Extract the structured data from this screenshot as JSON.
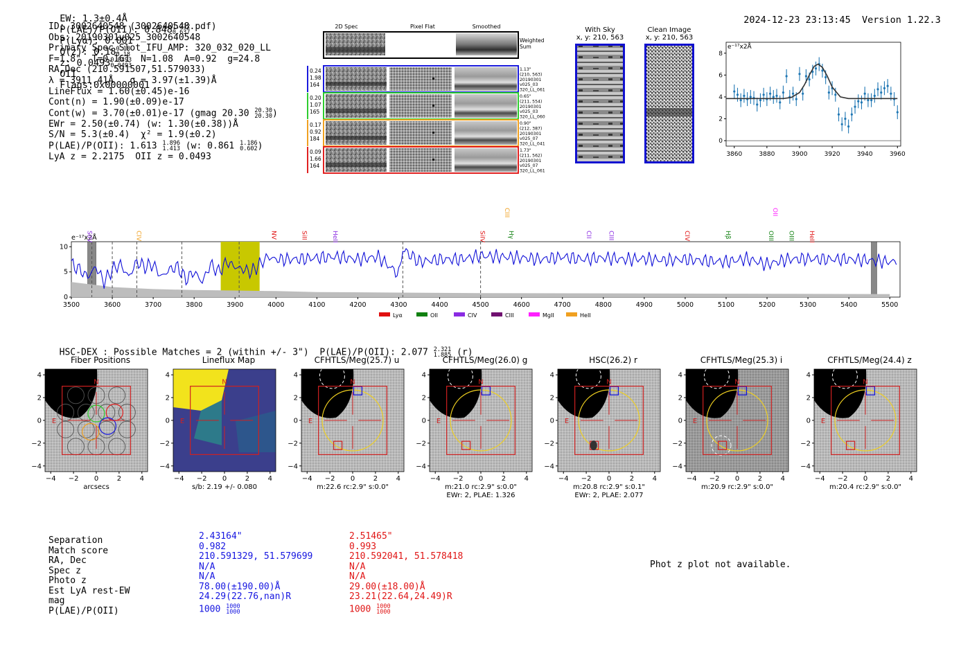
{
  "header": {
    "ew": "EW: 1.3±0.4Å",
    "plae_label": "P(LAE)/P(OII): 0.848",
    "plae_hi": "1.232",
    "plae_lo": "0.637",
    "plya": "P(Lyα): 0.001",
    "qz_label": "Q(z): 0.18",
    "qz_hi": "0.18",
    "qz_lo": "0.18",
    "z_label": "z: 0.0493",
    "z_hi": "0.0493",
    "z_lo": "0.0493",
    "z_line": "OII",
    "flags": "Flags:0x00000001",
    "timestamp": "2024-12-23 23:13:45",
    "version": "Version 1.22.3"
  },
  "info": {
    "id": "ID: 3002640548 (3002640548.pdf)",
    "obs": "Obs: 20190301v025_3002640548",
    "primary": "Primary Spec_Slot_IFU_AMP: 320_032_020_LL",
    "fiber": "F=1.8\"  T=0.161  N=1.08  A=0.92  g=24.8",
    "radec": "RA,Dec (210.591507,51.579033)",
    "lambda": "λ = 3911.41Å   σ = 3.97(±1.39)Å",
    "lineflux": "LineFlux = 1.60(±0.45)e-16",
    "contn": "Cont(n) = 1.90(±0.09)e-17",
    "contw": "Cont(w) = 3.70(±0.01)e-17 (gmag 20.30",
    "contw_hi": "20.30",
    "contw_lo": "20.30",
    "ewr": "EWr = 2.50(±0.74) (w: 1.30(±0.38))Å",
    "sn": "S/N = 5.3(±0.4)  χ² = 1.9(±0.2)",
    "plae": "P(LAE)/P(OII): 1.613",
    "plae_hi": "1.896",
    "plae_lo": "1.413",
    "plae_w": "(w: 0.861",
    "plae_w_hi": "1.186",
    "plae_w_lo": "0.602",
    "lya": "LyA z = 2.2175  OII z = 0.0493"
  },
  "spec2d": {
    "col1": "2D Spec",
    "col2": "Pixel Flat",
    "col3": "Smoothed",
    "weighted": "Weighted Sum",
    "rows": [
      {
        "v1": "0.24",
        "v2": "1.98",
        "v3": "164",
        "a": "1.13\"",
        "b": "(210, 563)",
        "c": "20190301",
        "d": "v025_03",
        "e": "320_LL_061",
        "color": "#1a1adc"
      },
      {
        "v1": "0.20",
        "v2": "1.07",
        "v3": "165",
        "a": "0.65\"",
        "b": "(211, 554)",
        "c": "20190301",
        "d": "v025_03",
        "e": "320_LL_060",
        "color": "#2ecc2e"
      },
      {
        "v1": "0.17",
        "v2": "0.92",
        "v3": "184",
        "a": "0.90\"",
        "b": "(212, 387)",
        "c": "20190301",
        "d": "v025_07",
        "e": "320_LL_041",
        "color": "#f0a020"
      },
      {
        "v1": "0.09",
        "v2": "1.66",
        "v3": "164",
        "a": "1.73\"",
        "b": "(211, 562)",
        "c": "20190301",
        "d": "v025_07",
        "e": "320_LL_061",
        "color": "#e02020"
      }
    ]
  },
  "sky": {
    "title": "With Sky",
    "coords": "x, y: 210, 563"
  },
  "clean": {
    "title": "Clean Image",
    "coords": "x, y: 210, 563"
  },
  "zoom_chart": {
    "ylabel": "e⁻¹⁷x2Å",
    "xticks": [
      "3860",
      "3880",
      "3900",
      "3920",
      "3940",
      "3960"
    ],
    "yticks": [
      "0",
      "2",
      "4",
      "6",
      "8"
    ]
  },
  "chart_data": [
    {
      "type": "line",
      "title": "Emission line zoom",
      "ylabel": "e-17 x2Å",
      "xlim": [
        3855,
        3962
      ],
      "ylim": [
        -0.5,
        9
      ],
      "series": [
        {
          "name": "data",
          "x": [
            3860,
            3862,
            3864,
            3866,
            3868,
            3870,
            3872,
            3874,
            3876,
            3878,
            3880,
            3882,
            3884,
            3886,
            3888,
            3890,
            3892,
            3894,
            3896,
            3898,
            3900,
            3902,
            3904,
            3906,
            3908,
            3910,
            3912,
            3914,
            3916,
            3918,
            3920,
            3922,
            3924,
            3926,
            3928,
            3930,
            3932,
            3934,
            3936,
            3938,
            3940,
            3942,
            3944,
            3946,
            3948,
            3950,
            3952,
            3954,
            3956,
            3958,
            3960
          ],
          "y": [
            4.5,
            4.2,
            3.7,
            4.1,
            3.8,
            4.0,
            3.9,
            3.3,
            3.7,
            4.2,
            3.8,
            4.3,
            4.0,
            4.1,
            3.5,
            4.4,
            5.9,
            4.0,
            4.3,
            3.8,
            6.1,
            4.3,
            5.9,
            5.6,
            6.3,
            6.6,
            7.0,
            6.4,
            5.8,
            4.4,
            4.8,
            4.2,
            2.4,
            1.5,
            2.0,
            1.3,
            2.4,
            3.1,
            3.6,
            3.5,
            4.3,
            3.7,
            3.7,
            4.1,
            4.7,
            4.4,
            4.8,
            5.0,
            4.3,
            3.8,
            2.6
          ]
        },
        {
          "name": "gaussian fit",
          "x": [
            3855,
            3890,
            3895,
            3900,
            3903,
            3906,
            3909,
            3911.4,
            3914,
            3917,
            3920,
            3925,
            3930,
            3960
          ],
          "y": [
            3.85,
            3.85,
            3.95,
            4.4,
            5.1,
            6.0,
            6.8,
            7.0,
            6.7,
            5.9,
            4.9,
            4.0,
            3.85,
            3.85
          ]
        }
      ]
    },
    {
      "type": "line",
      "title": "Full spectrum",
      "ylabel": "e-17 x2Å",
      "xlim": [
        3500,
        5525
      ],
      "ylim": [
        0,
        11
      ],
      "xticks": [
        3500,
        3600,
        3700,
        3800,
        3900,
        4000,
        4100,
        4200,
        4300,
        4400,
        4500,
        4600,
        4700,
        4800,
        4900,
        5000,
        5100,
        5200,
        5300,
        5400,
        5500
      ],
      "yticks": [
        0,
        5,
        10
      ],
      "highlight_range": [
        3865,
        3960
      ],
      "masked_ranges": [
        [
          3540,
          3560
        ],
        [
          5455,
          5468
        ]
      ],
      "series": [
        {
          "name": "flux",
          "x": [
            3500,
            3520,
            3540,
            3560,
            3580,
            3600,
            3620,
            3640,
            3660,
            3680,
            3700,
            3720,
            3740,
            3760,
            3780,
            3800,
            3820,
            3840,
            3860,
            3880,
            3900,
            3920,
            3940,
            3960,
            3980,
            4000,
            4050,
            4100,
            4150,
            4200,
            4250,
            4300,
            4310,
            4350,
            4400,
            4450,
            4500,
            4550,
            4600,
            4650,
            4700,
            4750,
            4800,
            4850,
            4900,
            4950,
            5000,
            5050,
            5100,
            5150,
            5200,
            5250,
            5300,
            5350,
            5400,
            5450,
            5500,
            5520
          ],
          "y": [
            6.5,
            5.5,
            4.0,
            6.0,
            3.0,
            5.5,
            6.5,
            4.0,
            7.0,
            6.0,
            6.5,
            4.0,
            5.5,
            6.0,
            3.5,
            5.0,
            3.0,
            6.5,
            5.0,
            7.0,
            6.0,
            5.5,
            5.0,
            6.5,
            8.0,
            7.5,
            7.5,
            7.8,
            8.0,
            7.5,
            8.0,
            4.5,
            9.5,
            7.0,
            7.5,
            7.5,
            8.2,
            8.0,
            7.8,
            7.5,
            8.0,
            7.5,
            7.8,
            7.5,
            7.6,
            7.3,
            7.5,
            7.2,
            7.0,
            7.6,
            6.5,
            7.5,
            7.6,
            7.5,
            7.5,
            7.3,
            7.0,
            7.2
          ]
        },
        {
          "name": "error",
          "x": [
            3500,
            3550,
            3600,
            3700,
            3800,
            3900,
            4000,
            4100,
            4300,
            4500,
            5000,
            5500
          ],
          "y": [
            3.0,
            2.5,
            2.0,
            1.6,
            1.4,
            1.3,
            1.2,
            1.0,
            0.9,
            0.8,
            0.7,
            0.6
          ]
        }
      ],
      "line_markers": [
        "SiIV",
        "CIV",
        "NV",
        "SiII",
        "HeII",
        "SiIV",
        "CIII",
        "Hγ",
        "CII",
        "CIII",
        "CIV",
        "Hβ",
        "OIII",
        "OIII",
        "HeII",
        "OII"
      ],
      "legend": [
        "Lyα",
        "OII",
        "CIV",
        "CIII",
        "MgII",
        "HeII"
      ]
    }
  ],
  "spectrum_legend": [
    {
      "label": "Lyα",
      "color": "#e01010"
    },
    {
      "label": "OII",
      "color": "#108010"
    },
    {
      "label": "CIV",
      "color": "#8a2be2"
    },
    {
      "label": "CIII",
      "color": "#701070"
    },
    {
      "label": "MgII",
      "color": "#ff20ff"
    },
    {
      "label": "HeII",
      "color": "#f0a020"
    }
  ],
  "spectrum_lines": [
    {
      "label": "SiIV",
      "color": "#8a2be2"
    },
    {
      "label": "CIV",
      "color": "#f0a020"
    },
    {
      "label": "NV",
      "color": "#e01010"
    },
    {
      "label": "SiII",
      "color": "#e01010"
    },
    {
      "label": "HeII",
      "color": "#8a2be2"
    },
    {
      "label": "SiIV",
      "color": "#e01010"
    },
    {
      "label": "CIII",
      "color": "#f0a020"
    },
    {
      "label": "Hγ",
      "color": "#108010"
    },
    {
      "label": "CII",
      "color": "#8a2be2"
    },
    {
      "label": "CIII",
      "color": "#8a2be2"
    },
    {
      "label": "CIV",
      "color": "#e01010"
    },
    {
      "label": "Hβ",
      "color": "#108010"
    },
    {
      "label": "OIII",
      "color": "#108010"
    },
    {
      "label": "OIII",
      "color": "#108010"
    },
    {
      "label": "HeII",
      "color": "#e01010"
    },
    {
      "label": "OII",
      "color": "#ff20ff"
    }
  ],
  "spec_axis": {
    "ylabel": "e⁻¹⁷x2Å",
    "xticks": [
      "3500",
      "3600",
      "3700",
      "3800",
      "3900",
      "4000",
      "4100",
      "4200",
      "4300",
      "4400",
      "4500",
      "4600",
      "4700",
      "4800",
      "4900",
      "5000",
      "5100",
      "5200",
      "5300",
      "5400",
      "5500"
    ],
    "yticks": [
      "0",
      "5",
      "10"
    ]
  },
  "hsc": {
    "label": "HSC-DEX : Possible Matches = 2 (within +/- 3\")  P(LAE)/P(OII): 2.077",
    "hi": "2.321",
    "lo": "1.885",
    "band": "(r)"
  },
  "cutouts": [
    {
      "title": "Fiber Positions",
      "cap1": "arcsecs",
      "cap2": ""
    },
    {
      "title": "Lineflux Map",
      "cap1": "s/b: 2.19 +/- 0.080",
      "cap2": ""
    },
    {
      "title": "CFHTLS/Meg(25.7) u",
      "cap1": "m:22.6 rc:2.9\"  s:0.0\"",
      "cap2": ""
    },
    {
      "title": "CFHTLS/Meg(26.0) g",
      "cap1": "m:21.0 rc:2.9\"  s:0.0\"",
      "cap2": "EWr: 2, PLAE: 1.326"
    },
    {
      "title": "HSC(26.2) r",
      "cap1": "m:20.8 rc:2.9\"  s:0.1\"",
      "cap2": "EWr: 2, PLAE: 2.077"
    },
    {
      "title": "CFHTLS/Meg(25.3) i",
      "cap1": "m:20.9 rc:2.9\"  s:0.0\"",
      "cap2": ""
    },
    {
      "title": "CFHTLS/Meg(24.4) z",
      "cap1": "m:20.4 rc:2.9\"  s:0.0\"",
      "cap2": ""
    }
  ],
  "cutout_axis": {
    "xticks": [
      "−4",
      "−2",
      "0",
      "2",
      "4"
    ],
    "yticks": [
      "4",
      "2",
      "0",
      "−2",
      "−4"
    ],
    "n": "N",
    "e": "E"
  },
  "matches": {
    "labels": [
      "Separation",
      "Match score",
      "RA, Dec",
      "Spec z",
      "Photo z",
      "Est LyA rest-EW",
      "mag",
      "P(LAE)/P(OII)"
    ],
    "blue": [
      "2.43164\"",
      "0.982",
      "210.591329, 51.579699",
      "N/A",
      "N/A",
      "78.00(±190.00)Å",
      "24.29(22.76,nan)R",
      "1000"
    ],
    "blue_hi": "1000",
    "blue_lo": "1000",
    "red": [
      "2.51465\"",
      "0.993",
      "210.592041, 51.578418",
      "N/A",
      "N/A",
      "29.00(±18.00)Å",
      "23.21(22.64,24.49)R",
      "1000"
    ],
    "red_hi": "1000",
    "red_lo": "1000",
    "photz": "Phot z plot not available."
  }
}
